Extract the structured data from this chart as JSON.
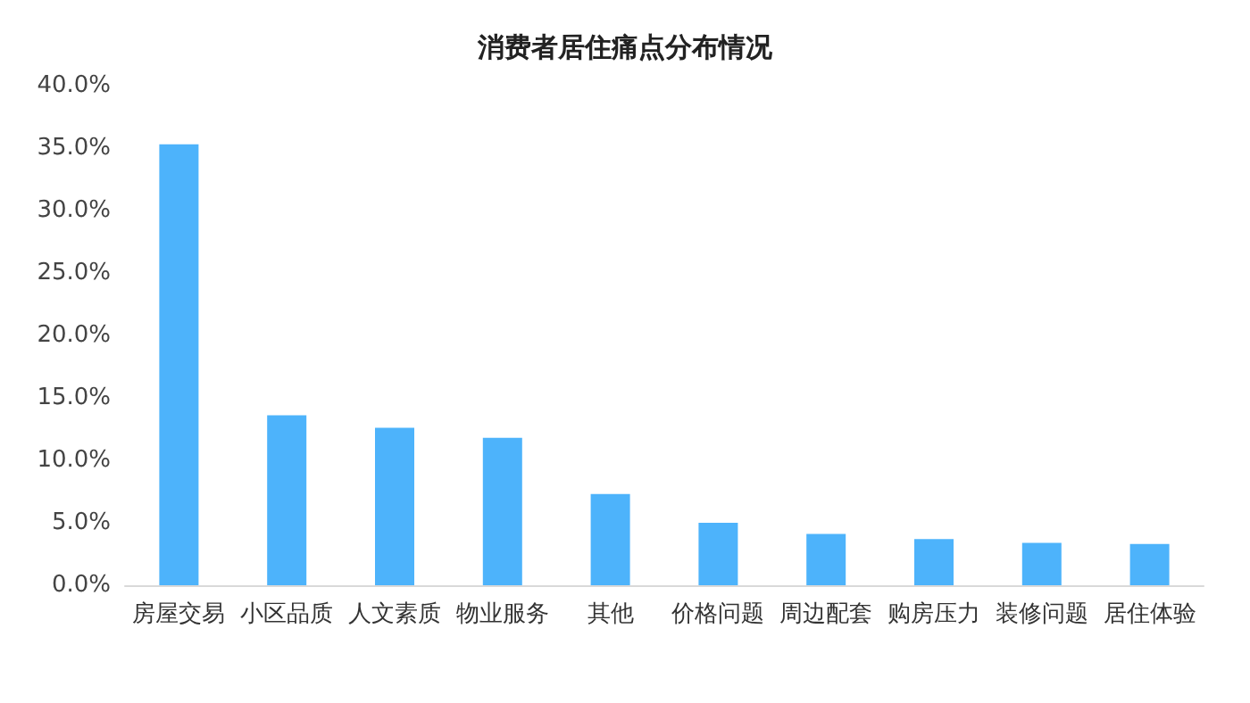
{
  "chart_data": {
    "type": "bar",
    "title": "消费者居住痛点分布情况",
    "categories": [
      "房屋交易",
      "小区品质",
      "人文素质",
      "物业服务",
      "其他",
      "价格问题",
      "周边配套",
      "购房压力",
      "装修问题",
      "居住体验"
    ],
    "values": [
      35.3,
      13.6,
      12.6,
      11.8,
      7.3,
      5.0,
      4.1,
      3.7,
      3.4,
      3.3
    ],
    "color": "#4db3fb",
    "ylim": [
      0,
      40
    ],
    "yticks": [
      {
        "value": 0,
        "label": "0.0%"
      },
      {
        "value": 5,
        "label": "5.0%"
      },
      {
        "value": 10,
        "label": "10.0%"
      },
      {
        "value": 15,
        "label": "15.0%"
      },
      {
        "value": 20,
        "label": "20.0%"
      },
      {
        "value": 25,
        "label": "25.0%"
      },
      {
        "value": 30,
        "label": "30.0%"
      },
      {
        "value": 35,
        "label": "35.0%"
      },
      {
        "value": 40,
        "label": "40.0%"
      }
    ],
    "grid": false
  }
}
